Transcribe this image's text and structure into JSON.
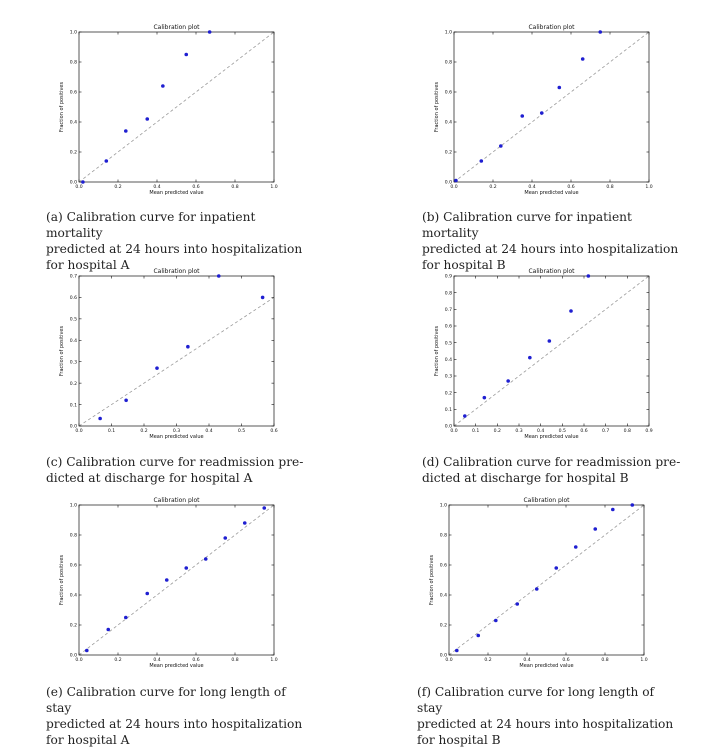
{
  "chart_data": [
    {
      "type": "scatter",
      "title": "Calibration plot",
      "xlabel": "Mean predicted value",
      "ylabel": "Fraction of positives",
      "xlim": [
        0,
        1.0
      ],
      "ylim": [
        0,
        1.0
      ],
      "ticks": [
        0.0,
        0.2,
        0.4,
        0.6,
        0.8,
        1.0
      ],
      "tick_labels": [
        "0.0",
        "0.2",
        "0.4",
        "0.6",
        "0.8",
        "1.0"
      ],
      "reference_line": "perfectly calibrated diagonal (dashed gray)",
      "points": [
        {
          "x": 0.02,
          "y": 0.0
        },
        {
          "x": 0.14,
          "y": 0.14
        },
        {
          "x": 0.24,
          "y": 0.34
        },
        {
          "x": 0.35,
          "y": 0.42
        },
        {
          "x": 0.43,
          "y": 0.64
        },
        {
          "x": 0.55,
          "y": 0.85
        },
        {
          "x": 0.67,
          "y": 1.0
        }
      ],
      "caption": "(a) Calibration curve for inpatient mortality predicted at 24 hours into hospitalization for hospital A",
      "caption_lines": [
        "(a) Calibration curve for inpatient mortality",
        "predicted at 24 hours into hospitalization",
        "for hospital A"
      ]
    },
    {
      "type": "scatter",
      "title": "Calibration plot",
      "xlabel": "Mean predicted value",
      "ylabel": "Fraction of positives",
      "xlim": [
        0,
        1.0
      ],
      "ylim": [
        0,
        1.0
      ],
      "ticks": [
        0.0,
        0.2,
        0.4,
        0.6,
        0.8,
        1.0
      ],
      "tick_labels": [
        "0.0",
        "0.2",
        "0.4",
        "0.6",
        "0.8",
        "1.0"
      ],
      "reference_line": "perfectly calibrated diagonal (dashed gray)",
      "points": [
        {
          "x": 0.01,
          "y": 0.01
        },
        {
          "x": 0.14,
          "y": 0.14
        },
        {
          "x": 0.24,
          "y": 0.24
        },
        {
          "x": 0.35,
          "y": 0.44
        },
        {
          "x": 0.45,
          "y": 0.46
        },
        {
          "x": 0.54,
          "y": 0.63
        },
        {
          "x": 0.66,
          "y": 0.82
        },
        {
          "x": 0.75,
          "y": 1.0
        }
      ],
      "caption": "(b) Calibration curve for inpatient mortality predicted at 24 hours into hospitalization for hospital B",
      "caption_lines": [
        "(b) Calibration curve for inpatient mortality",
        "predicted at 24 hours into hospitalization",
        "for hospital B"
      ]
    },
    {
      "type": "scatter",
      "title": "Calibration plot",
      "xlabel": "Mean predicted value",
      "ylabel": "Fraction of positives",
      "xlim": [
        0,
        0.6
      ],
      "ylim": [
        0,
        0.7
      ],
      "xticks": [
        0.0,
        0.1,
        0.2,
        0.3,
        0.4,
        0.5,
        0.6
      ],
      "xtick_labels": [
        "0.0",
        "0.1",
        "0.2",
        "0.3",
        "0.4",
        "0.5",
        "0.6"
      ],
      "yticks": [
        0.0,
        0.1,
        0.2,
        0.3,
        0.4,
        0.5,
        0.6,
        0.7
      ],
      "ytick_labels": [
        "0.0",
        "0.1",
        "0.2",
        "0.3",
        "0.4",
        "0.5",
        "0.6",
        "0.7"
      ],
      "reference_line": "perfectly calibrated diagonal (dashed gray)",
      "points": [
        {
          "x": 0.065,
          "y": 0.035
        },
        {
          "x": 0.145,
          "y": 0.12
        },
        {
          "x": 0.24,
          "y": 0.27
        },
        {
          "x": 0.335,
          "y": 0.37
        },
        {
          "x": 0.43,
          "y": 0.7
        },
        {
          "x": 0.565,
          "y": 0.6
        }
      ],
      "caption": "(c) Calibration curve for readmission predicted at discharge for hospital A",
      "caption_lines": [
        "(c) Calibration curve for readmission pre-",
        "dicted at discharge for hospital A"
      ]
    },
    {
      "type": "scatter",
      "title": "Calibration plot",
      "xlabel": "Mean predicted value",
      "ylabel": "Fraction of positives",
      "xlim": [
        0,
        0.9
      ],
      "ylim": [
        0,
        0.9
      ],
      "ticks": [
        0.0,
        0.1,
        0.2,
        0.3,
        0.4,
        0.5,
        0.6,
        0.7,
        0.8,
        0.9
      ],
      "tick_labels": [
        "0.0",
        "0.1",
        "0.2",
        "0.3",
        "0.4",
        "0.5",
        "0.6",
        "0.7",
        "0.8",
        "0.9"
      ],
      "reference_line": "perfectly calibrated diagonal (dashed gray)",
      "points": [
        {
          "x": 0.05,
          "y": 0.06
        },
        {
          "x": 0.14,
          "y": 0.17
        },
        {
          "x": 0.25,
          "y": 0.27
        },
        {
          "x": 0.35,
          "y": 0.41
        },
        {
          "x": 0.44,
          "y": 0.51
        },
        {
          "x": 0.54,
          "y": 0.69
        },
        {
          "x": 0.62,
          "y": 0.9
        }
      ],
      "caption": "(d) Calibration curve for readmission predicted at discharge for hospital B",
      "caption_lines": [
        "(d) Calibration curve for readmission pre-",
        "dicted at discharge for hospital B"
      ]
    },
    {
      "type": "scatter",
      "title": "Calibration plot",
      "xlabel": "Mean predicted value",
      "ylabel": "Fraction of positives",
      "xlim": [
        0,
        1.0
      ],
      "ylim": [
        0,
        1.0
      ],
      "ticks": [
        0.0,
        0.2,
        0.4,
        0.6,
        0.8,
        1.0
      ],
      "tick_labels": [
        "0.0",
        "0.2",
        "0.4",
        "0.6",
        "0.8",
        "1.0"
      ],
      "reference_line": "perfectly calibrated diagonal (dashed gray)",
      "points": [
        {
          "x": 0.04,
          "y": 0.03
        },
        {
          "x": 0.15,
          "y": 0.17
        },
        {
          "x": 0.24,
          "y": 0.25
        },
        {
          "x": 0.35,
          "y": 0.41
        },
        {
          "x": 0.45,
          "y": 0.5
        },
        {
          "x": 0.55,
          "y": 0.58
        },
        {
          "x": 0.65,
          "y": 0.64
        },
        {
          "x": 0.75,
          "y": 0.78
        },
        {
          "x": 0.85,
          "y": 0.88
        },
        {
          "x": 0.95,
          "y": 0.98
        }
      ],
      "caption": "(e) Calibration curve for long length of stay predicted at 24 hours into hospitalization for hospital A",
      "caption_lines": [
        "(e) Calibration curve for long length of stay",
        "predicted at 24 hours into hospitalization",
        "for hospital A"
      ]
    },
    {
      "type": "scatter",
      "title": "Calibration plot",
      "xlabel": "Mean predicted value",
      "ylabel": "Fraction of positives",
      "xlim": [
        0,
        1.0
      ],
      "ylim": [
        0,
        1.0
      ],
      "ticks": [
        0.0,
        0.2,
        0.4,
        0.6,
        0.8,
        1.0
      ],
      "tick_labels": [
        "0.0",
        "0.2",
        "0.4",
        "0.6",
        "0.8",
        "1.0"
      ],
      "reference_line": "perfectly calibrated diagonal (dashed gray)",
      "points": [
        {
          "x": 0.04,
          "y": 0.03
        },
        {
          "x": 0.15,
          "y": 0.13
        },
        {
          "x": 0.24,
          "y": 0.23
        },
        {
          "x": 0.35,
          "y": 0.34
        },
        {
          "x": 0.45,
          "y": 0.44
        },
        {
          "x": 0.55,
          "y": 0.58
        },
        {
          "x": 0.65,
          "y": 0.72
        },
        {
          "x": 0.75,
          "y": 0.84
        },
        {
          "x": 0.84,
          "y": 0.97
        },
        {
          "x": 0.94,
          "y": 1.0
        }
      ],
      "caption": "(f) Calibration curve for long length of stay predicted at 24 hours into hospitalization for hospital B",
      "caption_lines": [
        "(f) Calibration curve for long length of stay",
        "predicted at 24 hours into hospitalization",
        "for hospital B"
      ]
    }
  ],
  "colors": {
    "point": "#1f1fd1",
    "reference_line": "#9a9a9a",
    "axes": "#111111"
  }
}
